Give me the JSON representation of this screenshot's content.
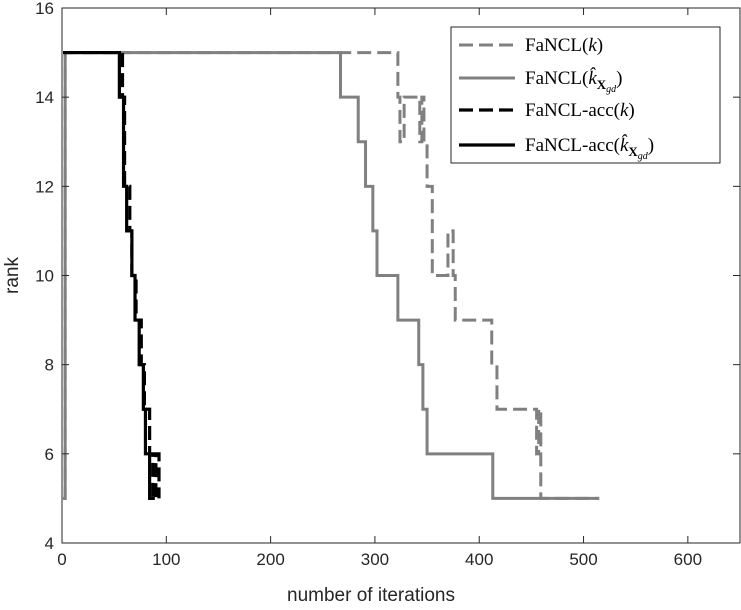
{
  "chart_data": {
    "type": "line",
    "title": "",
    "xlabel": "number of iterations",
    "ylabel": "rank",
    "xlim": [
      0,
      650
    ],
    "ylim": [
      4,
      16
    ],
    "xticks": [
      0,
      100,
      200,
      300,
      400,
      500,
      600
    ],
    "yticks": [
      4,
      6,
      8,
      10,
      12,
      14,
      16
    ],
    "grid": false,
    "legend_position": "top-right",
    "series": [
      {
        "name": "FaNCL(k)",
        "legend_main": "FaNCL(",
        "legend_var": "k",
        "legend_sub": "",
        "legend_close": ")",
        "color": "#808080",
        "style": "dashed",
        "x": [
          1,
          3,
          3,
          322,
          322,
          324,
          324,
          328,
          328,
          343,
          343,
          345,
          345,
          347,
          347,
          350,
          350,
          355,
          355,
          370,
          370,
          375,
          375,
          377,
          377,
          412,
          412,
          417,
          417,
          455,
          455,
          457,
          457,
          459,
          459,
          515
        ],
        "y": [
          5,
          5,
          15,
          15,
          14,
          14,
          13,
          13,
          14,
          14,
          13,
          13,
          14,
          14,
          13,
          13,
          12,
          12,
          10,
          10,
          11,
          11,
          10,
          10,
          9,
          9,
          8,
          8,
          7,
          7,
          6,
          6,
          7,
          7,
          5,
          5
        ]
      },
      {
        "name": "FaNCL(k̂_Xgd)",
        "legend_main": "FaNCL(",
        "legend_var": "k̂",
        "legend_sub": "X",
        "legend_subsub": "gd",
        "legend_close": ")",
        "color": "#808080",
        "style": "solid",
        "x": [
          1,
          3,
          3,
          267,
          267,
          284,
          284,
          291,
          291,
          298,
          298,
          302,
          302,
          322,
          322,
          342,
          342,
          346,
          346,
          350,
          350,
          375,
          375,
          413,
          413,
          456,
          456,
          515
        ],
        "y": [
          5,
          5,
          15,
          15,
          14,
          14,
          13,
          13,
          12,
          12,
          11,
          11,
          10,
          10,
          9,
          9,
          8,
          8,
          7,
          7,
          6,
          6,
          6,
          6,
          5,
          5,
          5,
          5
        ]
      },
      {
        "name": "FaNCL-acc(k)",
        "legend_main": "FaNCL-acc(",
        "legend_var": "k",
        "legend_sub": "",
        "legend_close": ")",
        "color": "#000000",
        "style": "dashed",
        "x": [
          1,
          1,
          58,
          58,
          60,
          60,
          65,
          65,
          67,
          67,
          71,
          71,
          76,
          76,
          79,
          79,
          84,
          84,
          87,
          87,
          90,
          90,
          93,
          93
        ],
        "y": [
          15,
          15,
          15,
          14,
          14,
          12,
          12,
          11,
          11,
          10,
          10,
          9,
          9,
          8,
          8,
          7,
          7,
          6,
          6,
          5,
          5,
          6,
          6,
          5
        ]
      },
      {
        "name": "FaNCL-acc(k̂_Xgd)",
        "legend_main": "FaNCL-acc(",
        "legend_var": "k̂",
        "legend_sub": "X",
        "legend_subsub": "gd",
        "legend_close": ")",
        "color": "#000000",
        "style": "solid",
        "x": [
          1,
          55,
          55,
          59,
          59,
          62,
          62,
          67,
          67,
          70,
          70,
          74,
          74,
          78,
          78,
          80,
          80,
          84,
          84,
          87,
          87,
          89
        ],
        "y": [
          15,
          15,
          14,
          14,
          12,
          12,
          11,
          11,
          10,
          10,
          9,
          9,
          8,
          8,
          7,
          7,
          6,
          6,
          5,
          5,
          5,
          5
        ]
      }
    ]
  }
}
